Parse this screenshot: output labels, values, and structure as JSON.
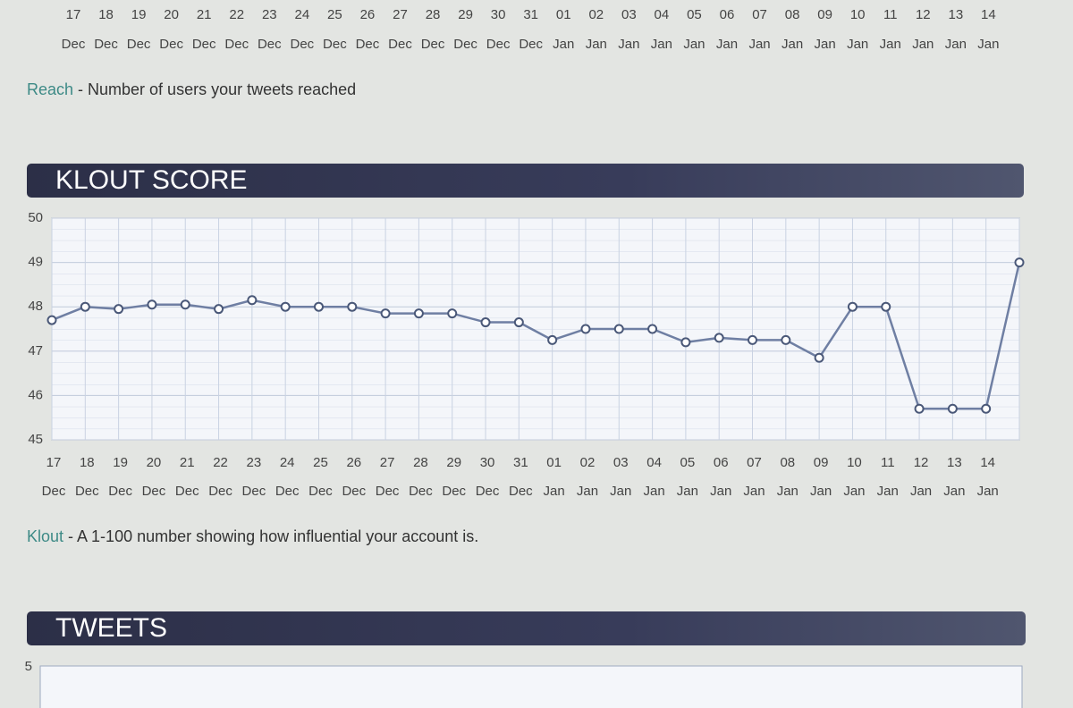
{
  "reach_axis": {
    "days": [
      "17",
      "18",
      "19",
      "20",
      "21",
      "22",
      "23",
      "24",
      "25",
      "26",
      "27",
      "28",
      "29",
      "30",
      "31",
      "01",
      "02",
      "03",
      "04",
      "05",
      "06",
      "07",
      "08",
      "09",
      "10",
      "11",
      "12",
      "13",
      "14"
    ],
    "months": [
      "Dec",
      "Dec",
      "Dec",
      "Dec",
      "Dec",
      "Dec",
      "Dec",
      "Dec",
      "Dec",
      "Dec",
      "Dec",
      "Dec",
      "Dec",
      "Dec",
      "Dec",
      "Jan",
      "Jan",
      "Jan",
      "Jan",
      "Jan",
      "Jan",
      "Jan",
      "Jan",
      "Jan",
      "Jan",
      "Jan",
      "Jan",
      "Jan",
      "Jan"
    ]
  },
  "reach_caption": {
    "term": "Reach",
    "text": " - Number of users your tweets reached"
  },
  "chart_data": {
    "type": "line",
    "title": "KLOUT SCORE",
    "categories": [
      "17",
      "18",
      "19",
      "20",
      "21",
      "22",
      "23",
      "24",
      "25",
      "26",
      "27",
      "28",
      "29",
      "30",
      "31",
      "01",
      "02",
      "03",
      "04",
      "05",
      "06",
      "07",
      "08",
      "09",
      "10",
      "11",
      "12",
      "13",
      "14",
      null
    ],
    "category_months": [
      "Dec",
      "Dec",
      "Dec",
      "Dec",
      "Dec",
      "Dec",
      "Dec",
      "Dec",
      "Dec",
      "Dec",
      "Dec",
      "Dec",
      "Dec",
      "Dec",
      "Dec",
      "Jan",
      "Jan",
      "Jan",
      "Jan",
      "Jan",
      "Jan",
      "Jan",
      "Jan",
      "Jan",
      "Jan",
      "Jan",
      "Jan",
      "Jan",
      "Jan",
      null
    ],
    "series": [
      {
        "name": "Klout",
        "color": "#6f7fa3",
        "values": [
          47.7,
          48.0,
          47.95,
          48.05,
          48.05,
          47.95,
          48.15,
          48.0,
          48.0,
          48.0,
          47.85,
          47.85,
          47.85,
          47.65,
          47.65,
          47.25,
          47.5,
          47.5,
          47.5,
          47.2,
          47.3,
          47.25,
          47.25,
          46.85,
          48.0,
          48.0,
          45.7,
          45.7,
          45.7,
          49.0
        ]
      }
    ],
    "ylim": [
      45,
      50
    ],
    "yticks": [
      45,
      46,
      47,
      48,
      49,
      50
    ],
    "grid": true
  },
  "klout_caption": {
    "term": "Klout",
    "text": " - A 1-100 number showing how influential your account is."
  },
  "tweets": {
    "title": "TWEETS",
    "yticks": [
      5
    ]
  }
}
